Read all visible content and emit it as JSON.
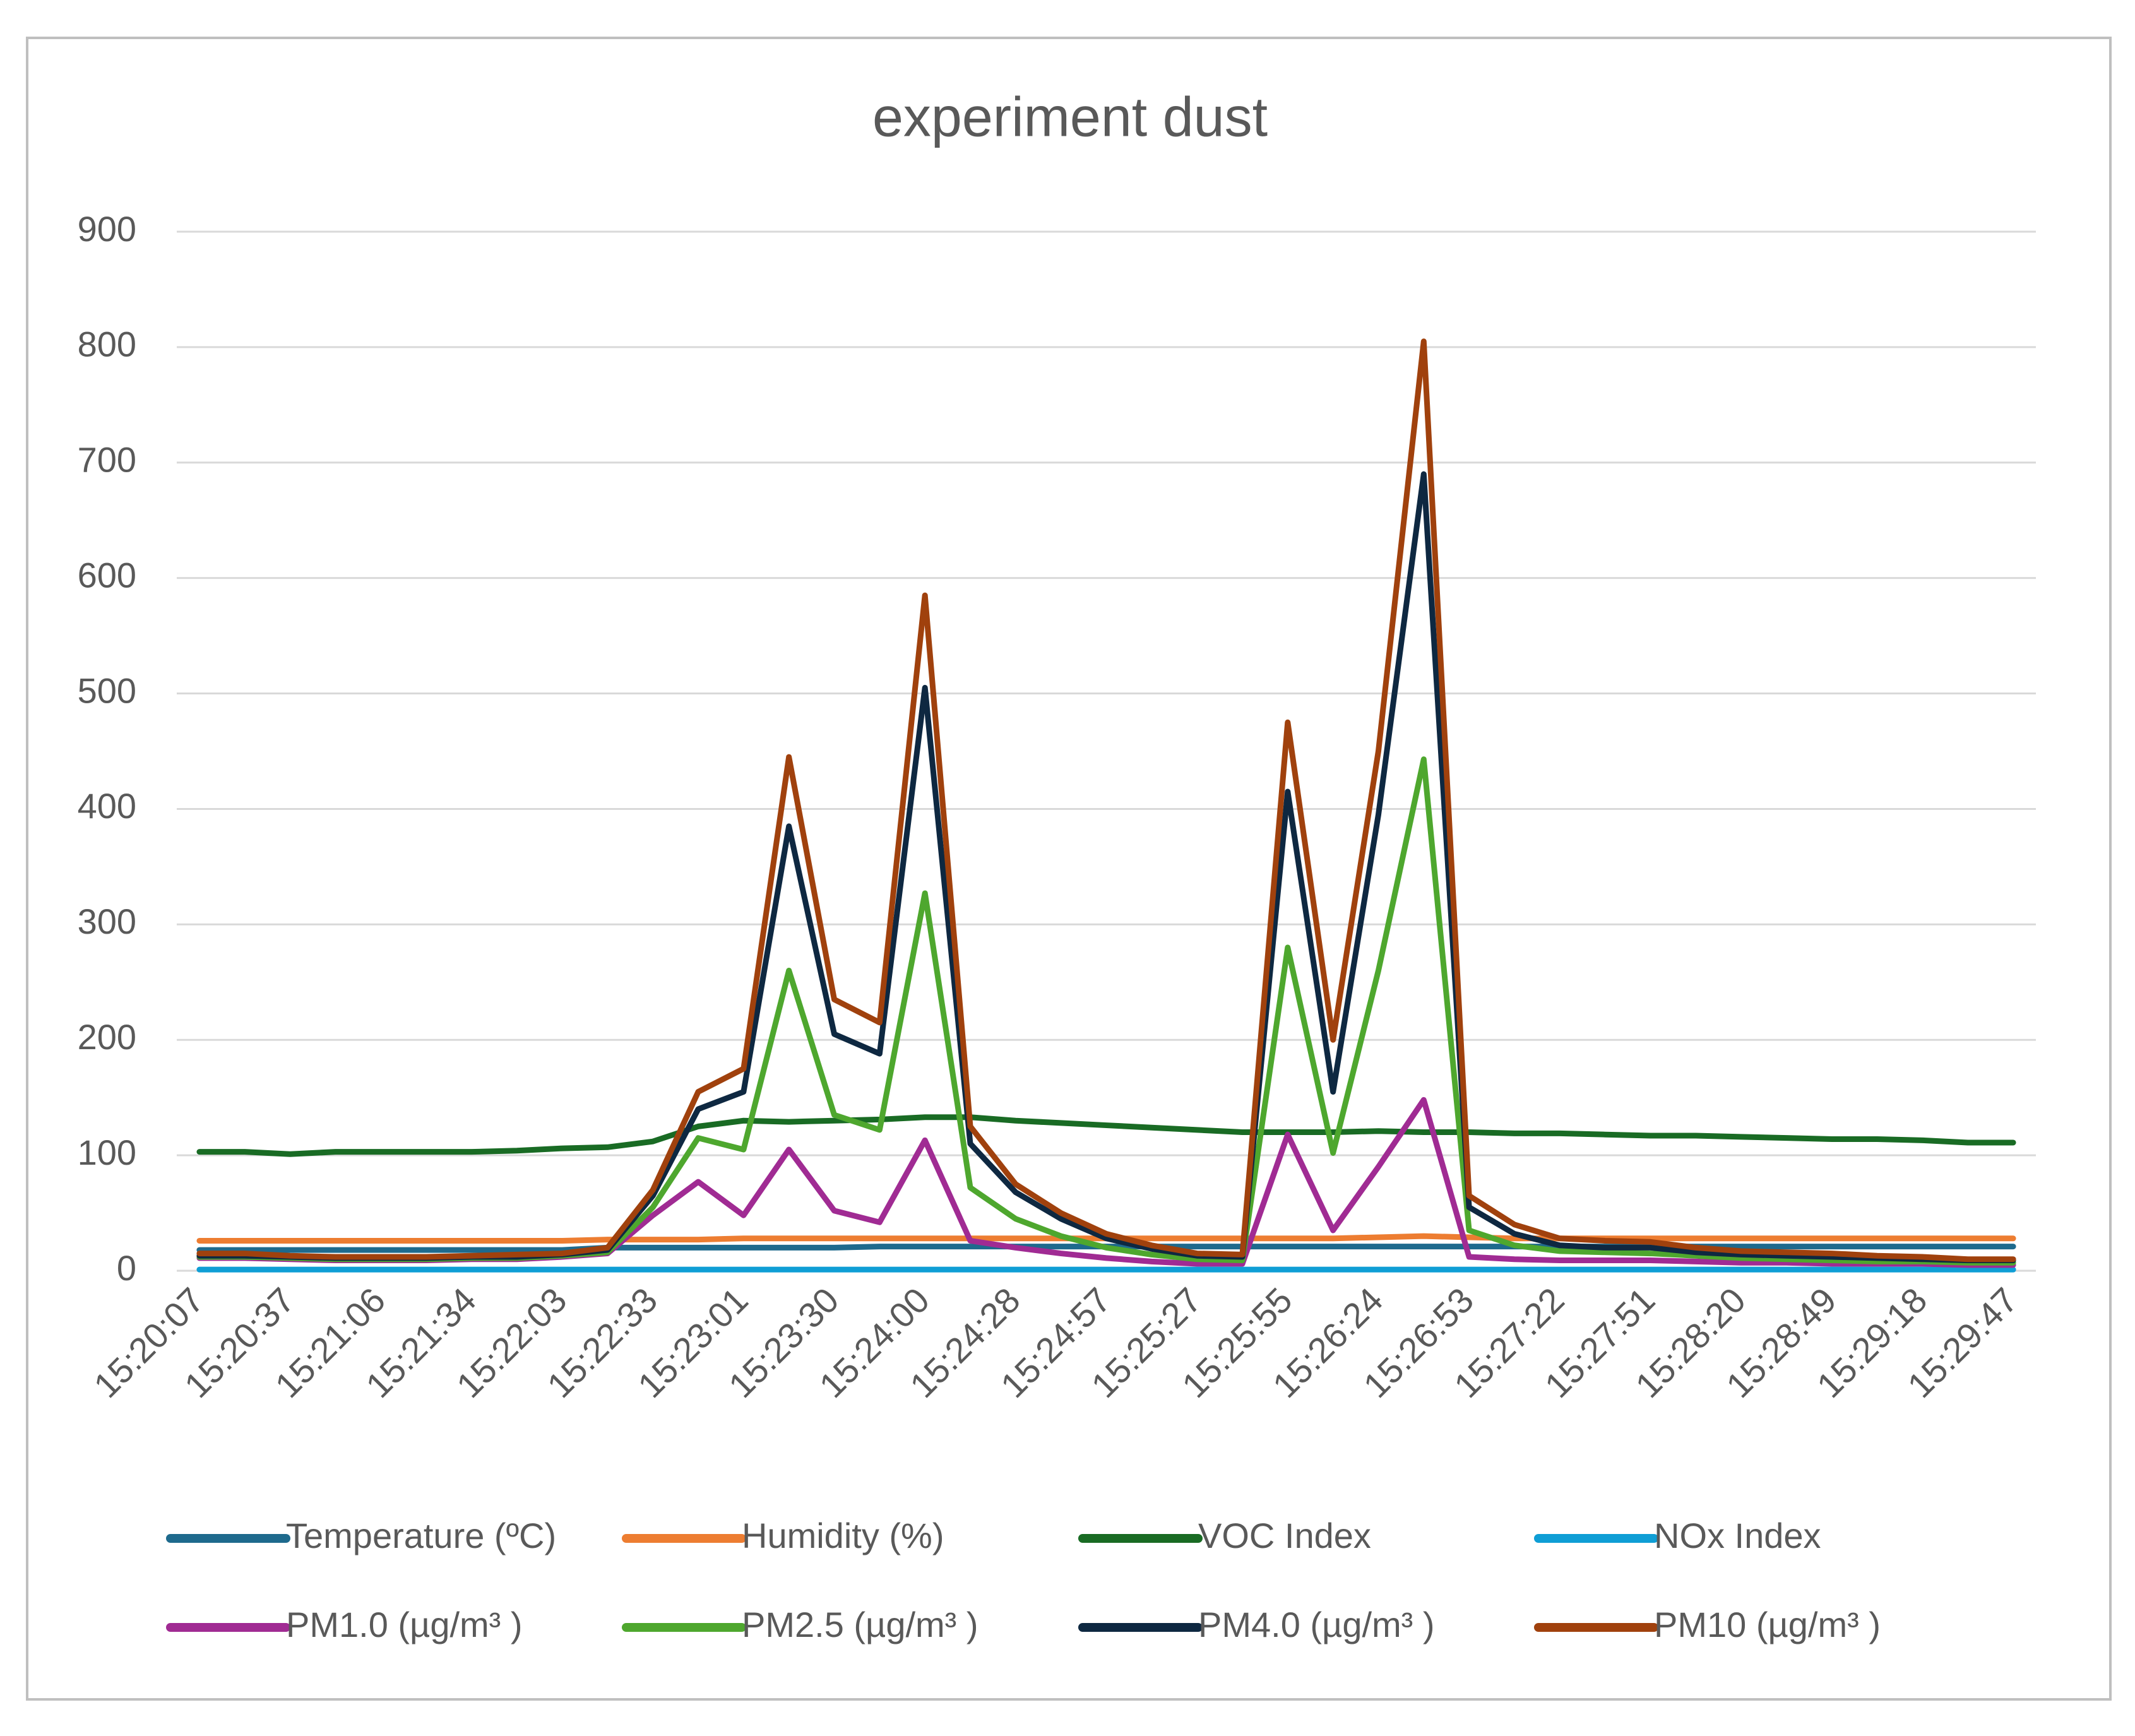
{
  "chart_data": {
    "type": "line",
    "title": "experiment dust",
    "categories": [
      "15:20:07",
      null,
      "15:20:37",
      null,
      "15:21:06",
      null,
      "15:21:34",
      null,
      "15:22:03",
      null,
      "15:22:33",
      null,
      "15:23:01",
      null,
      "15:23:30",
      null,
      "15:24:00",
      null,
      "15:24:28",
      null,
      "15:24:57",
      null,
      "15:25:27",
      null,
      "15:25:55",
      null,
      "15:26:24",
      null,
      "15:26:53",
      null,
      "15:27:22",
      null,
      "15:27:51",
      null,
      "15:28:20",
      null,
      "15:28:49",
      null,
      "15:29:18",
      null,
      "15:29:47"
    ],
    "series": [
      {
        "name": "Temperature (ºC)",
        "color": "#1e6a8d",
        "values": [
          18,
          18,
          18,
          18,
          18,
          18,
          18,
          18,
          18,
          20,
          20,
          20,
          20,
          20,
          20,
          21,
          21,
          21,
          21,
          21,
          21,
          21,
          21,
          21,
          21,
          21,
          21,
          21,
          21,
          21,
          21,
          21,
          21,
          21,
          21,
          21,
          21,
          21,
          21,
          21,
          21
        ]
      },
      {
        "name": "Humidity (%)",
        "color": "#ed7d31",
        "values": [
          26,
          26,
          26,
          26,
          26,
          26,
          26,
          26,
          26,
          27,
          27,
          27,
          28,
          28,
          28,
          28,
          28,
          28,
          28,
          28,
          28,
          28,
          28,
          28,
          28,
          28,
          29,
          30,
          29,
          28,
          28,
          28,
          28,
          28,
          28,
          28,
          28,
          28,
          28,
          28,
          28
        ]
      },
      {
        "name": "VOC Index",
        "color": "#196b24",
        "values": [
          103,
          103,
          101,
          103,
          103,
          103,
          103,
          104,
          106,
          107,
          112,
          125,
          130,
          129,
          130,
          131,
          133,
          133,
          130,
          128,
          126,
          124,
          122,
          120,
          120,
          120,
          121,
          120,
          120,
          119,
          119,
          118,
          117,
          117,
          116,
          115,
          114,
          114,
          113,
          111,
          111
        ]
      },
      {
        "name": "NOx Index",
        "color": "#0f9ed5",
        "values": [
          1,
          1,
          1,
          1,
          1,
          1,
          1,
          1,
          1,
          1,
          1,
          1,
          1,
          1,
          1,
          1,
          1,
          1,
          1,
          1,
          1,
          1,
          1,
          1,
          1,
          1,
          1,
          1,
          1,
          1,
          1,
          1,
          1,
          1,
          1,
          1,
          1,
          1,
          1,
          1,
          1
        ]
      },
      {
        "name": "PM1.0 (µg/m³ )",
        "color": "#a02b93",
        "values": [
          11,
          11,
          10,
          9,
          9,
          9,
          10,
          10,
          12,
          15,
          48,
          77,
          48,
          105,
          52,
          42,
          113,
          26,
          20,
          15,
          11,
          8,
          6,
          6,
          118,
          35,
          90,
          148,
          12,
          10,
          9,
          9,
          9,
          8,
          7,
          7,
          6,
          6,
          6,
          5,
          5
        ]
      },
      {
        "name": "PM2.5 (µg/m³ )",
        "color": "#4ea72e",
        "values": [
          12,
          12,
          11,
          10,
          10,
          10,
          11,
          11,
          13,
          16,
          55,
          115,
          105,
          260,
          135,
          122,
          327,
          72,
          45,
          30,
          20,
          14,
          10,
          9,
          280,
          102,
          260,
          443,
          35,
          22,
          17,
          16,
          15,
          13,
          11,
          10,
          9,
          8,
          8,
          7,
          7
        ]
      },
      {
        "name": "PM4.0 (µg/m³ )",
        "color": "#0e2841",
        "values": [
          13,
          13,
          12,
          11,
          11,
          11,
          12,
          12,
          14,
          18,
          65,
          140,
          155,
          385,
          205,
          188,
          505,
          110,
          68,
          45,
          28,
          19,
          13,
          12,
          415,
          155,
          395,
          690,
          55,
          32,
          22,
          20,
          20,
          16,
          14,
          13,
          12,
          11,
          10,
          9,
          9
        ]
      },
      {
        "name": "PM10 (µg/m³ )",
        "color": "#a0410d",
        "values": [
          15,
          15,
          13,
          12,
          12,
          12,
          13,
          14,
          15,
          20,
          70,
          155,
          175,
          445,
          235,
          215,
          585,
          125,
          75,
          50,
          32,
          22,
          15,
          14,
          475,
          200,
          450,
          805,
          65,
          40,
          28,
          26,
          25,
          20,
          17,
          16,
          15,
          13,
          12,
          10,
          10
        ]
      }
    ],
    "ylim": [
      0,
      900
    ],
    "yticks": [
      0,
      100,
      200,
      300,
      400,
      500,
      600,
      700,
      800,
      900
    ],
    "grid": true,
    "legend": "bottom"
  }
}
